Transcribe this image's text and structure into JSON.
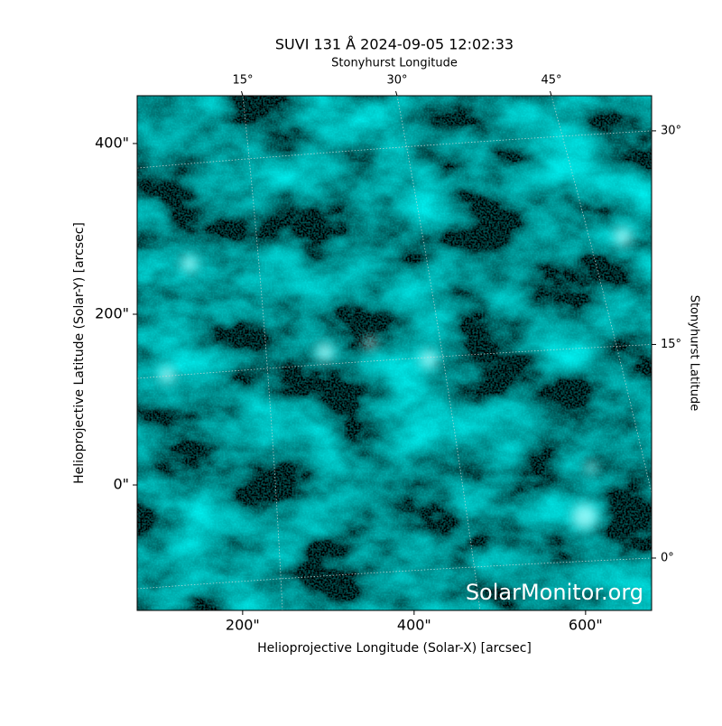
{
  "chart_data": {
    "type": "image",
    "title": "SUVI 131 Å 2024-09-05 12:02:33",
    "xlabel": "Helioprojective Longitude (Solar-X) [arcsec]",
    "ylabel": "Helioprojective Latitude (Solar-Y) [arcsec]",
    "top_label": "Stonyhurst Longitude",
    "right_label": "Stonyhurst Latitude",
    "watermark": "SolarMonitor.org",
    "color": "#00d8d8",
    "grid": true,
    "xlim": [
      77,
      677
    ],
    "ylim": [
      -147,
      456
    ],
    "xticks": [
      {
        "value": 200,
        "label": "200\""
      },
      {
        "value": 400,
        "label": "400\""
      },
      {
        "value": 600,
        "label": "600\""
      }
    ],
    "yticks": [
      {
        "value": 0,
        "label": "0\""
      },
      {
        "value": 200,
        "label": "200\""
      },
      {
        "value": 400,
        "label": "400\""
      }
    ],
    "lon_ticks": [
      {
        "value": 15,
        "label": "15°"
      },
      {
        "value": 30,
        "label": "30°"
      },
      {
        "value": 45,
        "label": "45°"
      }
    ],
    "lat_ticks": [
      {
        "value": 0,
        "label": "0°"
      },
      {
        "value": 15,
        "label": "15°"
      },
      {
        "value": 30,
        "label": "30°"
      }
    ]
  }
}
